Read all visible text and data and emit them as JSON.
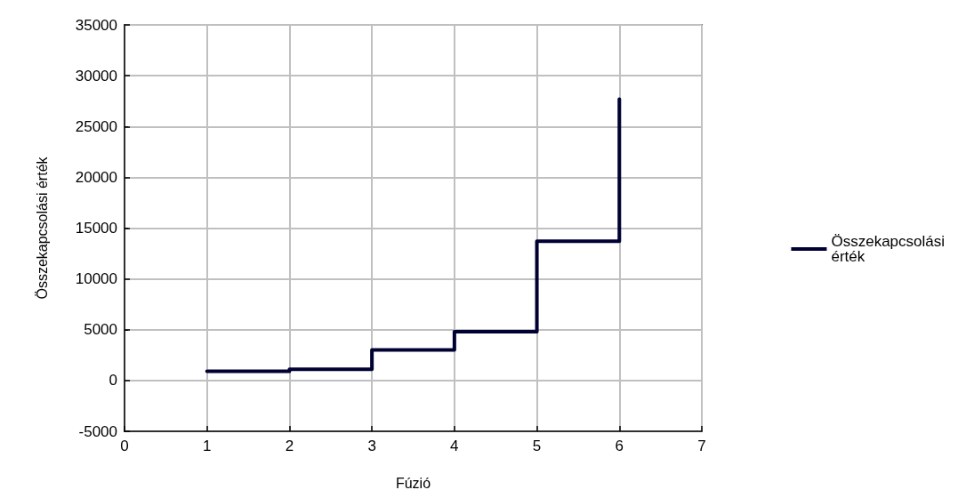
{
  "chart_data": {
    "type": "step",
    "xlabel": "Fúzió",
    "ylabel": "Összekapcsolási érték",
    "x": [
      1,
      2,
      3,
      4,
      5,
      6
    ],
    "series": [
      {
        "name": "Összekapcsolási\nérték",
        "color": "#000033",
        "values": [
          900,
          1100,
          3000,
          4800,
          13700,
          27700
        ]
      }
    ],
    "xlim": [
      0,
      7
    ],
    "xticks": [
      0,
      1,
      2,
      3,
      4,
      5,
      6,
      7
    ],
    "ylim": [
      -5000,
      35000
    ],
    "yticks": [
      -5000,
      0,
      5000,
      10000,
      15000,
      20000,
      25000,
      30000,
      35000
    ],
    "grid": true,
    "legend": "right",
    "marker": "none",
    "line_style": "solid"
  }
}
